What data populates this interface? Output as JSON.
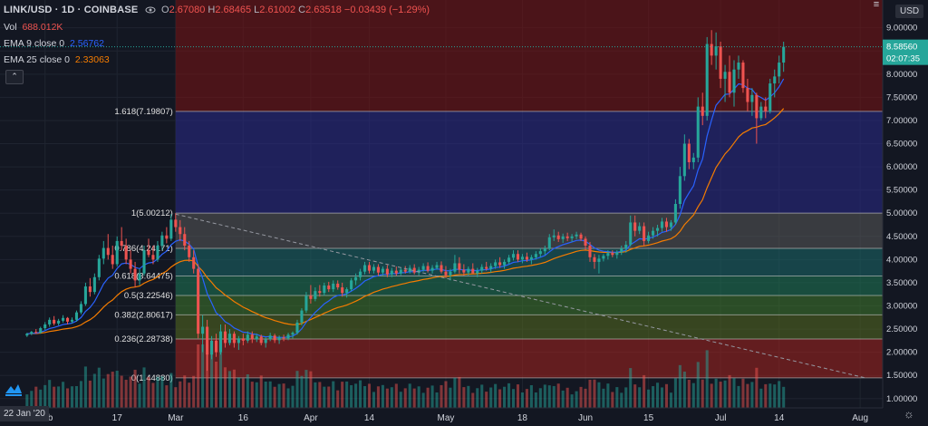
{
  "header": {
    "symbol": "LINK/USD · 1D · COINBASE",
    "ohlc": {
      "o_label": "O",
      "o": "2.67080",
      "h_label": "H",
      "h": "2.68465",
      "l_label": "L",
      "l": "2.61002",
      "c_label": "C",
      "c": "2.63518",
      "chg": "−0.03439 (−1.29%)"
    }
  },
  "indicators": [
    {
      "label": "Vol",
      "value": "688.012K",
      "color": "#ef5350"
    },
    {
      "label": "EMA 9 close 0",
      "value": "2.56762",
      "color": "#2962ff"
    },
    {
      "label": "EMA 25 close 0",
      "value": "2.33063",
      "color": "#f57c00"
    }
  ],
  "currency": "USD",
  "price_tag": {
    "value": "8.58560",
    "countdown": "02:07:35"
  },
  "corner_date": "22 Jan '20",
  "chart_data": {
    "type": "candlestick",
    "y_axis": {
      "ticks": [
        "1.00000",
        "1.50000",
        "2.00000",
        "2.50000",
        "3.00000",
        "3.50000",
        "4.00000",
        "4.50000",
        "5.00000",
        "5.50000",
        "6.00000",
        "6.50000",
        "7.00000",
        "7.50000",
        "8.00000",
        "8.50000",
        "9.00000"
      ],
      "min": 0.8,
      "max": 9.6
    },
    "x_axis": {
      "ticks": [
        {
          "label": "Feb",
          "t": 4
        },
        {
          "label": "17",
          "t": 20
        },
        {
          "label": "Mar",
          "t": 33
        },
        {
          "label": "16",
          "t": 48
        },
        {
          "label": "Apr",
          "t": 63
        },
        {
          "label": "14",
          "t": 76
        },
        {
          "label": "May",
          "t": 93
        },
        {
          "label": "18",
          "t": 110
        },
        {
          "label": "Jun",
          "t": 124
        },
        {
          "label": "15",
          "t": 138
        },
        {
          "label": "Jul",
          "t": 154
        },
        {
          "label": "14",
          "t": 167
        },
        {
          "label": "Aug",
          "t": 185
        }
      ],
      "t_min": -6,
      "t_max": 190
    },
    "fibonacci": [
      {
        "label": "0(1.44880)",
        "value": 1.4488,
        "fill": "#a5221e"
      },
      {
        "label": "0.236(2.28738)",
        "value": 2.28738,
        "fill": "#556b1f"
      },
      {
        "label": "0.382(2.80617)",
        "value": 2.80617,
        "fill": "#3f7a2b"
      },
      {
        "label": "0.5(3.22546)",
        "value": 3.22546,
        "fill": "#1f7a55"
      },
      {
        "label": "0.618(3.64475)",
        "value": 3.64475,
        "fill": "#1b6a6a"
      },
      {
        "label": "0.786(4.24171)",
        "value": 4.24171,
        "fill": "#5a5a5a"
      },
      {
        "label": "1(5.00212)",
        "value": 5.00212,
        "fill": "#2a2a8a"
      },
      {
        "label": "1.618(7.19807)",
        "value": 7.19807,
        "fill": "#7a1212"
      }
    ],
    "fib_t_start": 33,
    "trendline": {
      "from": {
        "t": 33,
        "v": 4.98
      },
      "to": {
        "t": 186,
        "v": 1.45
      }
    },
    "candles": [
      [
        2.36,
        2.42,
        2.33,
        2.4
      ],
      [
        2.4,
        2.46,
        2.37,
        2.44
      ],
      [
        2.44,
        2.5,
        2.4,
        2.42
      ],
      [
        2.42,
        2.55,
        2.4,
        2.52
      ],
      [
        2.52,
        2.65,
        2.48,
        2.6
      ],
      [
        2.6,
        2.75,
        2.55,
        2.7
      ],
      [
        2.7,
        2.78,
        2.58,
        2.62
      ],
      [
        2.62,
        2.72,
        2.58,
        2.68
      ],
      [
        2.68,
        2.8,
        2.64,
        2.74
      ],
      [
        2.74,
        2.76,
        2.6,
        2.66
      ],
      [
        2.66,
        2.75,
        2.62,
        2.7
      ],
      [
        2.7,
        2.9,
        2.66,
        2.86
      ],
      [
        2.86,
        3.1,
        2.82,
        3.04
      ],
      [
        3.04,
        3.5,
        3.0,
        3.42
      ],
      [
        3.42,
        3.6,
        3.2,
        3.3
      ],
      [
        3.3,
        3.7,
        3.25,
        3.62
      ],
      [
        3.62,
        4.1,
        3.55,
        4.02
      ],
      [
        4.02,
        4.4,
        3.9,
        4.25
      ],
      [
        4.25,
        4.55,
        4.0,
        4.1
      ],
      [
        4.1,
        4.3,
        3.8,
        3.9
      ],
      [
        3.9,
        4.5,
        3.85,
        4.4
      ],
      [
        4.4,
        4.7,
        4.2,
        4.3
      ],
      [
        4.3,
        4.45,
        3.9,
        4.0
      ],
      [
        4.0,
        4.2,
        3.7,
        3.8
      ],
      [
        3.8,
        3.95,
        3.4,
        3.55
      ],
      [
        3.55,
        3.8,
        3.45,
        3.7
      ],
      [
        3.7,
        4.3,
        3.65,
        4.2
      ],
      [
        4.2,
        4.45,
        4.05,
        4.1
      ],
      [
        4.1,
        4.3,
        3.9,
        4.0
      ],
      [
        4.0,
        4.4,
        3.95,
        4.3
      ],
      [
        4.3,
        4.6,
        4.2,
        4.52
      ],
      [
        4.52,
        4.7,
        4.35,
        4.45
      ],
      [
        4.45,
        4.98,
        4.4,
        4.86
      ],
      [
        4.86,
        5.0,
        4.6,
        4.7
      ],
      [
        4.7,
        4.85,
        4.4,
        4.55
      ],
      [
        4.55,
        4.7,
        4.2,
        4.3
      ],
      [
        4.3,
        4.4,
        3.95,
        4.05
      ],
      [
        4.05,
        4.2,
        3.7,
        3.8
      ],
      [
        3.8,
        3.9,
        2.3,
        2.4
      ],
      [
        2.4,
        2.8,
        2.0,
        2.55
      ],
      [
        2.55,
        2.7,
        1.6,
        1.95
      ],
      [
        1.95,
        2.35,
        1.85,
        2.25
      ],
      [
        2.25,
        2.4,
        1.9,
        2.0
      ],
      [
        2.0,
        2.6,
        1.95,
        2.45
      ],
      [
        2.45,
        2.6,
        2.1,
        2.2
      ],
      [
        2.2,
        2.5,
        2.15,
        2.4
      ],
      [
        2.4,
        2.45,
        2.1,
        2.2
      ],
      [
        2.2,
        2.35,
        2.05,
        2.3
      ],
      [
        2.3,
        2.4,
        2.15,
        2.25
      ],
      [
        2.25,
        2.45,
        2.2,
        2.38
      ],
      [
        2.38,
        2.45,
        2.2,
        2.28
      ],
      [
        2.28,
        2.4,
        2.22,
        2.34
      ],
      [
        2.34,
        2.38,
        2.15,
        2.2
      ],
      [
        2.2,
        2.32,
        2.1,
        2.28
      ],
      [
        2.28,
        2.42,
        2.24,
        2.36
      ],
      [
        2.36,
        2.4,
        2.2,
        2.26
      ],
      [
        2.26,
        2.36,
        2.18,
        2.32
      ],
      [
        2.32,
        2.38,
        2.24,
        2.3
      ],
      [
        2.3,
        2.42,
        2.26,
        2.38
      ],
      [
        2.38,
        2.45,
        2.3,
        2.42
      ],
      [
        2.42,
        2.7,
        2.38,
        2.64
      ],
      [
        2.64,
        2.95,
        2.58,
        2.9
      ],
      [
        2.9,
        3.3,
        2.85,
        3.22
      ],
      [
        3.22,
        3.45,
        3.05,
        3.15
      ],
      [
        3.15,
        3.4,
        3.1,
        3.32
      ],
      [
        3.32,
        3.45,
        3.2,
        3.28
      ],
      [
        3.28,
        3.5,
        3.22,
        3.44
      ],
      [
        3.44,
        3.52,
        3.3,
        3.36
      ],
      [
        3.36,
        3.55,
        3.3,
        3.48
      ],
      [
        3.48,
        3.55,
        3.35,
        3.4
      ],
      [
        3.4,
        3.5,
        3.2,
        3.28
      ],
      [
        3.28,
        3.4,
        3.18,
        3.36
      ],
      [
        3.36,
        3.6,
        3.32,
        3.55
      ],
      [
        3.55,
        3.7,
        3.45,
        3.62
      ],
      [
        3.62,
        3.8,
        3.55,
        3.74
      ],
      [
        3.74,
        3.95,
        3.68,
        3.88
      ],
      [
        3.88,
        3.95,
        3.7,
        3.76
      ],
      [
        3.76,
        3.9,
        3.7,
        3.84
      ],
      [
        3.84,
        3.9,
        3.65,
        3.72
      ],
      [
        3.72,
        3.85,
        3.66,
        3.8
      ],
      [
        3.8,
        3.88,
        3.62,
        3.68
      ],
      [
        3.68,
        3.82,
        3.62,
        3.76
      ],
      [
        3.76,
        3.85,
        3.65,
        3.7
      ],
      [
        3.7,
        3.82,
        3.66,
        3.78
      ],
      [
        3.78,
        3.86,
        3.7,
        3.74
      ],
      [
        3.74,
        3.88,
        3.7,
        3.82
      ],
      [
        3.82,
        3.9,
        3.68,
        3.72
      ],
      [
        3.72,
        3.84,
        3.66,
        3.78
      ],
      [
        3.78,
        3.92,
        3.74,
        3.86
      ],
      [
        3.86,
        3.94,
        3.72,
        3.76
      ],
      [
        3.76,
        3.88,
        3.7,
        3.82
      ],
      [
        3.82,
        3.95,
        3.78,
        3.88
      ],
      [
        3.88,
        3.96,
        3.7,
        3.74
      ],
      [
        3.74,
        3.86,
        3.6,
        3.66
      ],
      [
        3.66,
        3.8,
        3.55,
        3.74
      ],
      [
        3.74,
        4.1,
        3.7,
        3.92
      ],
      [
        3.92,
        4.05,
        3.7,
        3.78
      ],
      [
        3.78,
        3.9,
        3.65,
        3.72
      ],
      [
        3.72,
        3.85,
        3.66,
        3.8
      ],
      [
        3.8,
        3.92,
        3.74,
        3.7
      ],
      [
        3.7,
        3.82,
        3.62,
        3.76
      ],
      [
        3.76,
        3.9,
        3.7,
        3.84
      ],
      [
        3.84,
        3.95,
        3.76,
        3.8
      ],
      [
        3.8,
        3.92,
        3.72,
        3.86
      ],
      [
        3.86,
        4.0,
        3.8,
        3.94
      ],
      [
        3.94,
        4.05,
        3.82,
        3.88
      ],
      [
        3.88,
        4.0,
        3.8,
        3.95
      ],
      [
        3.95,
        4.1,
        3.9,
        4.04
      ],
      [
        4.04,
        4.2,
        3.98,
        4.12
      ],
      [
        4.12,
        4.2,
        3.95,
        4.0
      ],
      [
        4.0,
        4.12,
        3.92,
        4.06
      ],
      [
        4.06,
        4.15,
        3.95,
        4.0
      ],
      [
        4.0,
        4.1,
        3.9,
        4.05
      ],
      [
        4.05,
        4.18,
        4.0,
        4.12
      ],
      [
        4.12,
        4.25,
        4.05,
        4.18
      ],
      [
        4.18,
        4.3,
        4.1,
        4.24
      ],
      [
        4.24,
        4.55,
        4.2,
        4.48
      ],
      [
        4.48,
        4.65,
        4.4,
        4.52
      ],
      [
        4.52,
        4.6,
        4.38,
        4.44
      ],
      [
        4.44,
        4.56,
        4.36,
        4.5
      ],
      [
        4.5,
        4.58,
        4.4,
        4.46
      ],
      [
        4.46,
        4.55,
        4.38,
        4.5
      ],
      [
        4.5,
        4.6,
        4.44,
        4.54
      ],
      [
        4.54,
        4.58,
        4.4,
        4.45
      ],
      [
        4.45,
        4.5,
        4.2,
        4.3
      ],
      [
        4.3,
        4.38,
        3.95,
        4.05
      ],
      [
        4.05,
        4.12,
        3.8,
        3.95
      ],
      [
        3.95,
        4.1,
        3.7,
        4.02
      ],
      [
        4.02,
        4.12,
        3.96,
        4.08
      ],
      [
        4.08,
        4.2,
        4.0,
        4.14
      ],
      [
        4.14,
        4.2,
        4.05,
        4.1
      ],
      [
        4.1,
        4.2,
        4.02,
        4.16
      ],
      [
        4.16,
        4.3,
        4.1,
        4.24
      ],
      [
        4.24,
        4.4,
        4.15,
        4.32
      ],
      [
        4.32,
        4.95,
        4.28,
        4.8
      ],
      [
        4.8,
        4.95,
        4.5,
        4.62
      ],
      [
        4.62,
        4.8,
        4.55,
        4.72
      ],
      [
        4.72,
        4.8,
        4.3,
        4.4
      ],
      [
        4.4,
        4.6,
        4.35,
        4.52
      ],
      [
        4.52,
        4.7,
        4.45,
        4.62
      ],
      [
        4.62,
        4.75,
        4.5,
        4.68
      ],
      [
        4.68,
        4.9,
        4.6,
        4.82
      ],
      [
        4.82,
        4.9,
        4.6,
        4.7
      ],
      [
        4.7,
        4.85,
        4.62,
        4.8
      ],
      [
        4.8,
        5.3,
        4.75,
        5.2
      ],
      [
        5.2,
        6.0,
        5.1,
        5.8
      ],
      [
        5.8,
        6.7,
        5.7,
        6.5
      ],
      [
        6.5,
        6.6,
        5.95,
        6.1
      ],
      [
        6.1,
        6.3,
        5.95,
        6.2
      ],
      [
        6.2,
        7.5,
        6.1,
        7.3
      ],
      [
        7.3,
        7.6,
        6.9,
        7.1
      ],
      [
        7.1,
        8.8,
        7.0,
        8.65
      ],
      [
        8.65,
        8.95,
        8.2,
        8.4
      ],
      [
        8.4,
        8.9,
        8.1,
        8.6
      ],
      [
        8.6,
        8.7,
        7.7,
        7.9
      ],
      [
        7.9,
        8.2,
        7.4,
        8.05
      ],
      [
        8.05,
        8.4,
        7.5,
        7.6
      ],
      [
        7.6,
        8.3,
        7.3,
        8.1
      ],
      [
        8.1,
        8.4,
        7.9,
        8.25
      ],
      [
        8.25,
        8.3,
        7.6,
        7.7
      ],
      [
        7.7,
        7.9,
        7.2,
        7.4
      ],
      [
        7.4,
        7.7,
        7.1,
        7.55
      ],
      [
        7.55,
        7.6,
        6.5,
        7.05
      ],
      [
        7.05,
        7.4,
        7.0,
        7.3
      ],
      [
        7.3,
        7.5,
        7.05,
        7.2
      ],
      [
        7.2,
        7.9,
        7.15,
        7.8
      ],
      [
        7.8,
        8.1,
        7.5,
        7.95
      ],
      [
        7.95,
        8.4,
        7.8,
        8.25
      ],
      [
        8.25,
        8.7,
        8.05,
        8.59
      ]
    ]
  }
}
